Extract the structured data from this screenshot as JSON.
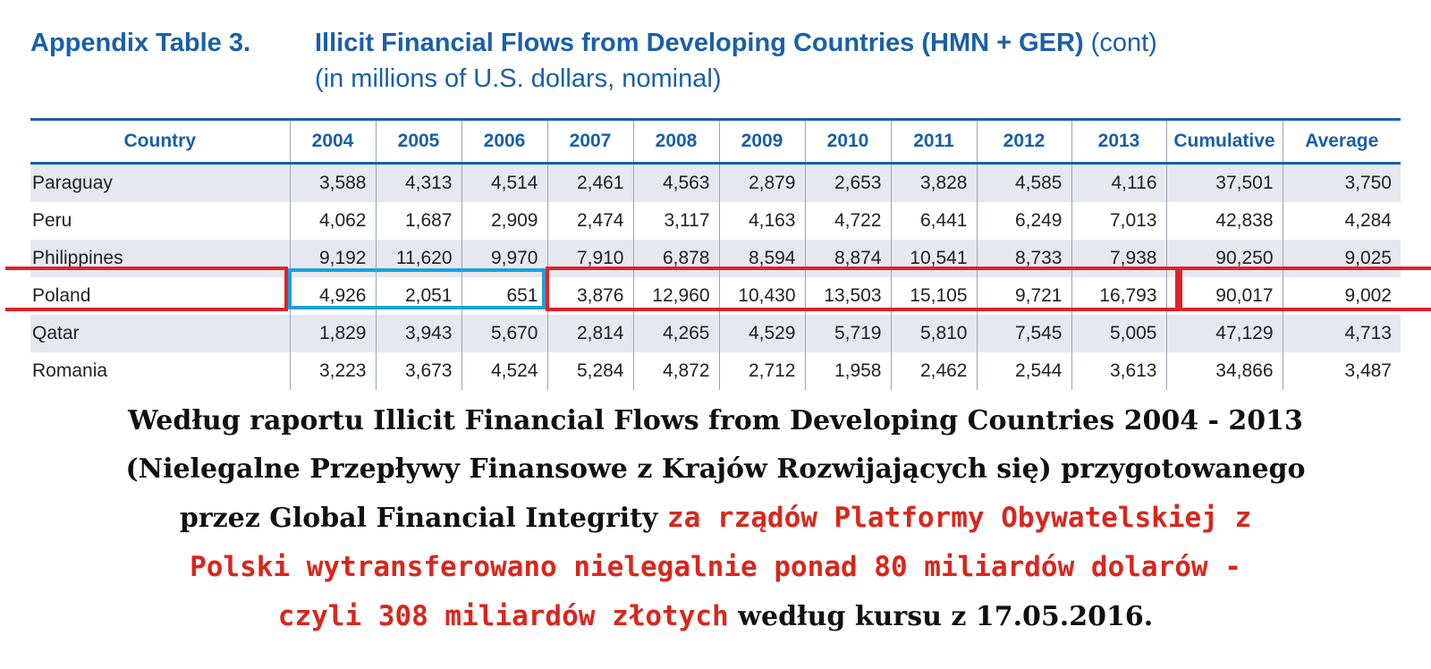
{
  "header": {
    "label": "Appendix Table 3.",
    "title": "Illicit Financial Flows from Developing Countries (HMN + GER)",
    "title_suffix": " (cont)",
    "subtitle": "(in millions of U.S. dollars, nominal)"
  },
  "table": {
    "columns": [
      "Country",
      "2004",
      "2005",
      "2006",
      "2007",
      "2008",
      "2009",
      "2010",
      "2011",
      "2012",
      "2013",
      "Cumulative",
      "Average"
    ],
    "rows": [
      [
        "Paraguay",
        "3,588",
        "4,313",
        "4,514",
        "2,461",
        "4,563",
        "2,879",
        "2,653",
        "3,828",
        "4,585",
        "4,116",
        "37,501",
        "3,750"
      ],
      [
        "Peru",
        "4,062",
        "1,687",
        "2,909",
        "2,474",
        "3,117",
        "4,163",
        "4,722",
        "6,441",
        "6,249",
        "7,013",
        "42,838",
        "4,284"
      ],
      [
        "Philippines",
        "9,192",
        "11,620",
        "9,970",
        "7,910",
        "6,878",
        "8,594",
        "8,874",
        "10,541",
        "8,733",
        "7,938",
        "90,250",
        "9,025"
      ],
      [
        "Poland",
        "4,926",
        "2,051",
        "651",
        "3,876",
        "12,960",
        "10,430",
        "13,503",
        "15,105",
        "9,721",
        "16,793",
        "90,017",
        "9,002"
      ],
      [
        "Qatar",
        "1,829",
        "3,943",
        "5,670",
        "2,814",
        "4,265",
        "4,529",
        "5,719",
        "5,810",
        "7,545",
        "5,005",
        "47,129",
        "4,713"
      ],
      [
        "Romania",
        "3,223",
        "3,673",
        "4,524",
        "5,284",
        "4,872",
        "2,712",
        "1,958",
        "2,462",
        "2,544",
        "3,613",
        "34,866",
        "3,487"
      ]
    ]
  },
  "caption": {
    "line1": "Według raportu Illicit Financial Flows from Developing Countries 2004 - 2013",
    "line2": "(Nielegalne Przepływy Finansowe z Krajów Rozwijających się) przygotowanego",
    "line3_black": "przez Global Financial Integrity ",
    "line3_red": "za rządów Platformy Obywatelskiej z",
    "line4_red": "Polski wytransferowano nielegalnie ponad 80 miliardów dolarów -",
    "line5_red": "czyli 308 miliardów złotych",
    "line5_black": " według kursu z 17.05.2016."
  },
  "colors": {
    "header_blue": "#1a5fa8",
    "highlight_red": "#e0222a",
    "highlight_blue": "#1ca0dc",
    "caption_red": "#d8271d",
    "row_band": "#e6e8f0"
  }
}
